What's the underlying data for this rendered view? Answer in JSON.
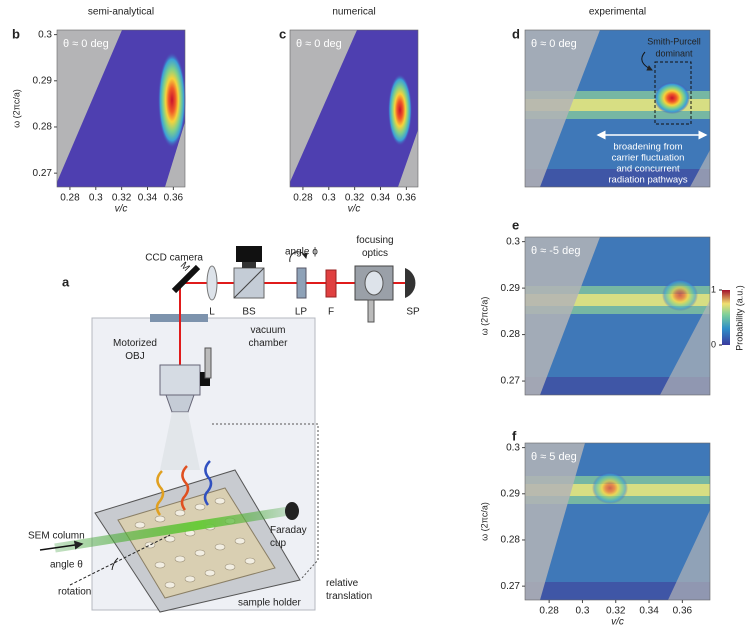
{
  "panels": [
    {
      "letter": "b",
      "title": "semi-analytical",
      "annotation": "θ ≈ 0 deg",
      "ylabel": "ω (2πc/a)",
      "xlabel": "v/c",
      "xlim": [
        0.27,
        0.369
      ],
      "ylim": [
        0.267,
        0.301
      ],
      "xticks": [
        0.28,
        0.3,
        0.32,
        0.34,
        0.36
      ],
      "yticks": [
        0.27,
        0.28,
        0.29,
        0.3
      ]
    },
    {
      "letter": "c",
      "title": "numerical",
      "annotation": "θ ≈ 0 deg",
      "xlabel": "v/c",
      "xlim": [
        0.27,
        0.369
      ],
      "ylim": [
        0.267,
        0.301
      ],
      "xticks": [
        0.28,
        0.3,
        0.32,
        0.34,
        0.36
      ]
    },
    {
      "letter": "d",
      "title": "experimental",
      "annotation": "θ ≈ 0 deg",
      "callout": [
        "Smith-Purcell",
        "dominant"
      ],
      "note": [
        "broadening from",
        "carrier fluctuation",
        "and concurrent",
        "radiation pathways"
      ]
    },
    {
      "letter": "e",
      "annotation": "θ ≈ -5 deg",
      "ylabel": "ω (2πc/a)",
      "ylim": [
        0.267,
        0.301
      ],
      "yticks": [
        0.27,
        0.28,
        0.29,
        0.3
      ]
    },
    {
      "letter": "f",
      "annotation": "θ ≈ 5 deg",
      "ylabel": "ω (2πc/a)",
      "xlabel": "v/c",
      "xlim": [
        0.2655,
        0.3766
      ],
      "ylim": [
        0.267,
        0.301
      ],
      "xticks": [
        0.28,
        0.3,
        0.32,
        0.34,
        0.36
      ],
      "yticks": [
        0.27,
        0.28,
        0.29,
        0.3
      ]
    }
  ],
  "colorbar": {
    "label": "Probability (a.u.)",
    "lim": [
      0,
      1
    ],
    "ticks": [
      0,
      1
    ]
  },
  "setup": {
    "letter": "a",
    "ccd_camera": "CCD camera",
    "angle_phi": "angle ϕ",
    "focusing_optics": [
      "focusing",
      "optics"
    ],
    "m": "M",
    "l": "L",
    "bs": "BS",
    "lp": "LP",
    "f": "F",
    "sp": "SP",
    "vacuum_chamber": [
      "vacuum",
      "chamber"
    ],
    "objective": [
      "Motorized",
      "OBJ"
    ],
    "sem_column": "SEM column",
    "angle_theta": "angle θ",
    "rotation": "rotation",
    "faraday_cup": [
      "Faraday",
      "cup"
    ],
    "relative_translation": [
      "relative",
      "translation"
    ],
    "sample_holder": "sample holder"
  }
}
